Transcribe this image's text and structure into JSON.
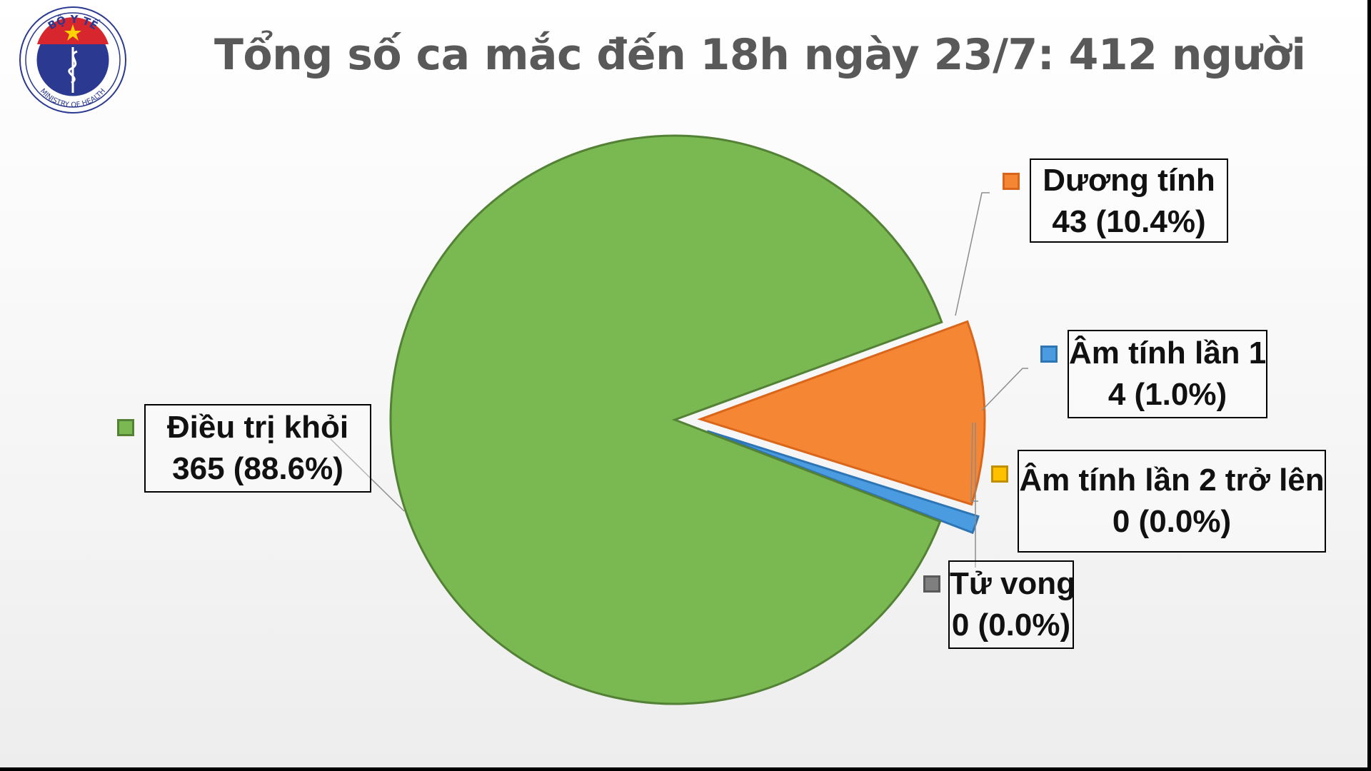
{
  "header": {
    "title": "Tổng số ca mắc đến 18h ngày 23/7: 412 người",
    "logo": {
      "icon": "ministry-of-health-emblem-icon",
      "top_text": "BỘ Y TẾ",
      "bottom_text": "MINISTRY OF HEALTH"
    }
  },
  "chart_data": {
    "type": "pie",
    "title": "Tổng số ca mắc đến 18h ngày 23/7: 412 người",
    "total": 412,
    "slices": [
      {
        "name": "Dương tính",
        "value": 43,
        "percent": "10.4%",
        "value_label": "43 (10.4%)",
        "color": "#F58634",
        "stroke": "#D9661A",
        "legend_icon": "square",
        "exploded": true
      },
      {
        "name": "Âm tính lần 1",
        "value": 4,
        "percent": "1.0%",
        "value_label": "4 (1.0%)",
        "color": "#4A9BE0",
        "stroke": "#2E75B6",
        "legend_icon": "square",
        "exploded": true
      },
      {
        "name": "Âm tính lần 2 trở lên",
        "value": 0,
        "percent": "0.0%",
        "value_label": "0 (0.0%)",
        "color": "#FFC000",
        "stroke": "#BF8F00",
        "legend_icon": "square",
        "exploded": false
      },
      {
        "name": "Tử vong",
        "value": 0,
        "percent": "0.0%",
        "value_label": "0 (0.0%)",
        "color": "#7F7F7F",
        "stroke": "#595959",
        "legend_icon": "square",
        "exploded": false
      },
      {
        "name": "Điều trị khỏi",
        "value": 365,
        "percent": "88.6%",
        "value_label": "365 (88.6%)",
        "color": "#7AB851",
        "stroke": "#538135",
        "legend_icon": "square",
        "exploded": false
      }
    ]
  }
}
